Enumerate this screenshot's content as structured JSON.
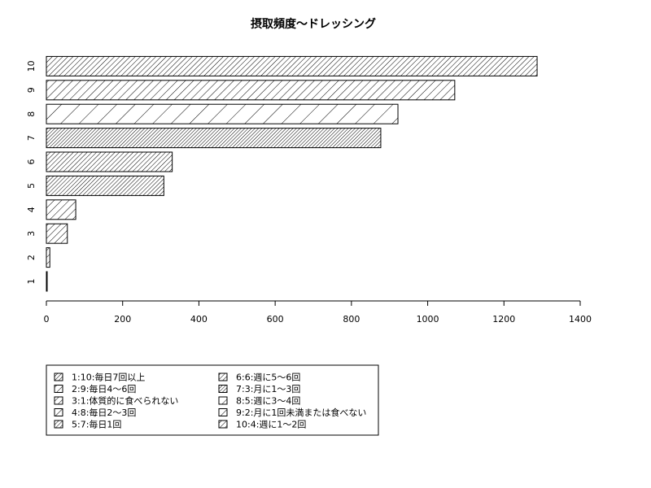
{
  "chart_data": {
    "type": "bar",
    "orientation": "horizontal",
    "title": "摂取頻度〜ドレッシング",
    "xlabel": "",
    "ylabel": "",
    "categories": [
      "1",
      "2",
      "3",
      "4",
      "5",
      "6",
      "7",
      "8",
      "9",
      "10"
    ],
    "values": [
      2,
      9,
      55,
      77,
      308,
      330,
      877,
      922,
      1071,
      1287
    ],
    "xlim": [
      0,
      1400
    ],
    "x_ticks": [
      0,
      200,
      400,
      600,
      800,
      1000,
      1200,
      1400
    ],
    "grid": false,
    "fill_style": "hatched",
    "legend_position": "bottom-left",
    "legend": [
      "1:10:毎日7回以上",
      "2:9:毎日4〜6回",
      "3:1:体質的に食べられない",
      "4:8:毎日2〜3回",
      "5:7:毎日1回",
      "6:6:週に5〜6回",
      "7:3:月に1〜3回",
      "8:5:週に3〜4回",
      "9:2:月に1回未満または食べない",
      "10:4:週に1〜2回"
    ]
  },
  "colors": {
    "stroke": "#000000",
    "background": "#ffffff"
  }
}
